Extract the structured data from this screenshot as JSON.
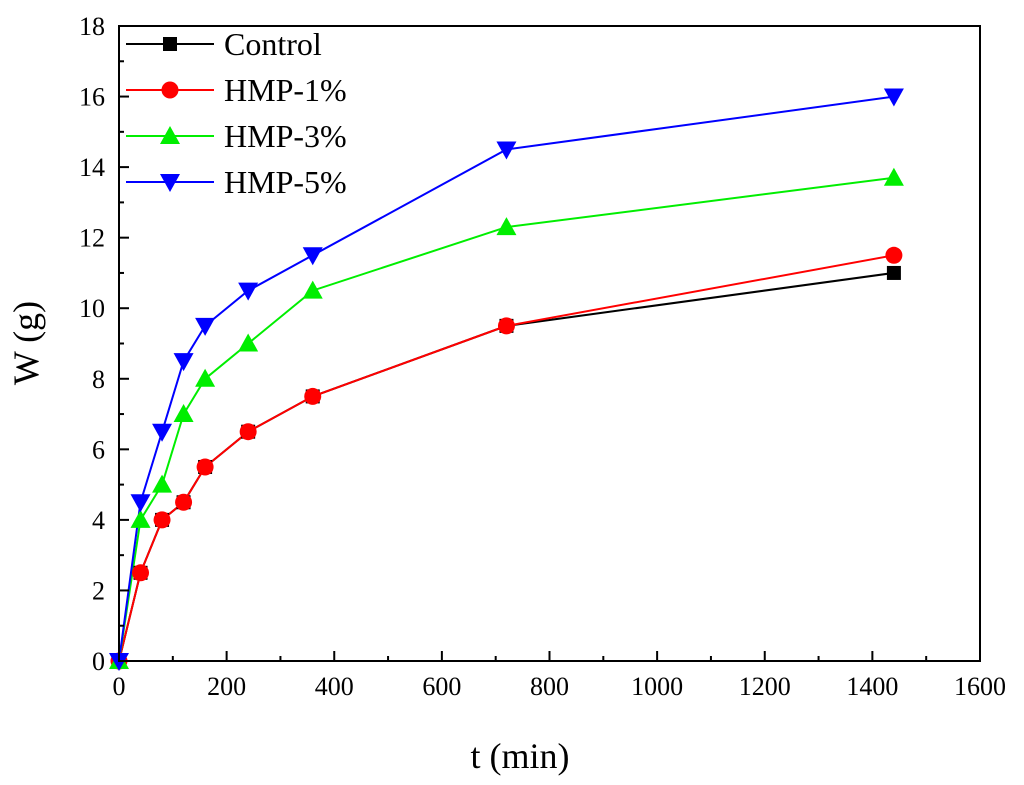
{
  "chart_data": {
    "type": "line",
    "xlabel": "t (min)",
    "ylabel": "W (g)",
    "xlim": [
      0,
      1600
    ],
    "ylim": [
      0,
      18
    ],
    "xticks": [
      0,
      200,
      400,
      600,
      800,
      1000,
      1200,
      1400,
      1600
    ],
    "yticks": [
      0,
      2,
      4,
      6,
      8,
      10,
      12,
      14,
      16,
      18
    ],
    "grid": false,
    "legend_position": "top-left",
    "series": [
      {
        "name": "Control",
        "color": "#000000",
        "marker": "square",
        "x": [
          0,
          40,
          80,
          120,
          160,
          240,
          360,
          720,
          1440
        ],
        "y": [
          0,
          2.5,
          4.0,
          4.5,
          5.5,
          6.5,
          7.5,
          9.5,
          11.0
        ]
      },
      {
        "name": "HMP-1%",
        "color": "#ff0000",
        "marker": "circle",
        "x": [
          0,
          40,
          80,
          120,
          160,
          240,
          360,
          720,
          1440
        ],
        "y": [
          0,
          2.5,
          4.0,
          4.5,
          5.5,
          6.5,
          7.5,
          9.5,
          11.5
        ]
      },
      {
        "name": "HMP-3%",
        "color": "#00ee00",
        "marker": "triangle-up",
        "x": [
          0,
          40,
          80,
          120,
          160,
          240,
          360,
          720,
          1440
        ],
        "y": [
          0,
          4.0,
          5.0,
          7.0,
          8.0,
          9.0,
          10.5,
          12.3,
          13.7
        ]
      },
      {
        "name": "HMP-5%",
        "color": "#0000ff",
        "marker": "triangle-down",
        "x": [
          0,
          40,
          80,
          120,
          160,
          240,
          360,
          720,
          1440
        ],
        "y": [
          0,
          4.5,
          6.5,
          8.5,
          9.5,
          10.5,
          11.5,
          14.5,
          16.0
        ]
      }
    ]
  }
}
